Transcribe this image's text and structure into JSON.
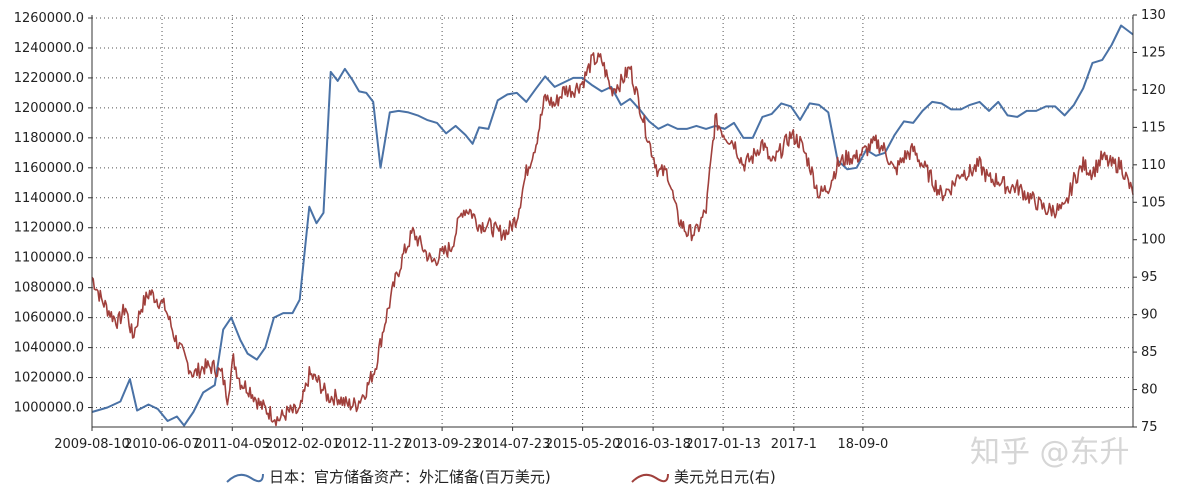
{
  "chart_data": {
    "type": "line",
    "x_ticks": [
      "2009-08-10",
      "2010-06-07",
      "2011-04-05",
      "2012-02-01",
      "2012-11-27",
      "2013-09-23",
      "2014-07-23",
      "2015-05-20",
      "2016-03-18",
      "2017-01-13",
      "2017-11-13",
      "2018-09-06"
    ],
    "x_tick_labels_shown": [
      "2009-08-10",
      "2010-06-07",
      "2011-04-05",
      "2012-02-01",
      "2012-11-27",
      "2013-09-23",
      "2014-07-23",
      "2015-05-20",
      "2016-03-18",
      "2017-01-13",
      "2017-1",
      "18-09-0"
    ],
    "y_left": {
      "ticks": [
        1000000,
        1020000,
        1040000,
        1060000,
        1080000,
        1100000,
        1120000,
        1140000,
        1160000,
        1180000,
        1200000,
        1220000,
        1240000,
        1260000
      ],
      "tick_labels": [
        "1000000.0",
        "1020000.0",
        "1040000.0",
        "1060000.0",
        "1080000.0",
        "1100000.0",
        "1120000.0",
        "1140000.0",
        "1160000.0",
        "1180000.0",
        "1200000.0",
        "1220000.0",
        "1240000.0",
        "1260000.0"
      ],
      "range": [
        987000,
        1262000
      ]
    },
    "y_right": {
      "ticks": [
        75,
        80,
        85,
        90,
        95,
        100,
        105,
        110,
        115,
        120,
        125,
        130
      ],
      "tick_labels": [
        "75",
        "80",
        "85",
        "90",
        "95",
        "100",
        "105",
        "110",
        "115",
        "120",
        "125",
        "130"
      ],
      "range": [
        75,
        130
      ]
    },
    "grid": true,
    "legend_position": "bottom-center",
    "series": [
      {
        "name": "日本：官方储备资产：外汇储备(百万美元)",
        "axis": "left",
        "color": "#4a72a6",
        "points": [
          [
            "2009-08-10",
            997000
          ],
          [
            "2009-10-15",
            1000000
          ],
          [
            "2009-12-10",
            1004000
          ],
          [
            "2010-01-20",
            1019000
          ],
          [
            "2010-02-20",
            998000
          ],
          [
            "2010-04-10",
            1002000
          ],
          [
            "2010-05-20",
            999000
          ],
          [
            "2010-07-01",
            991000
          ],
          [
            "2010-08-10",
            994000
          ],
          [
            "2010-09-10",
            988000
          ],
          [
            "2010-10-20",
            997000
          ],
          [
            "2010-12-01",
            1010000
          ],
          [
            "2011-01-20",
            1015000
          ],
          [
            "2011-02-25",
            1052000
          ],
          [
            "2011-04-01",
            1060000
          ],
          [
            "2011-05-10",
            1045000
          ],
          [
            "2011-06-10",
            1036000
          ],
          [
            "2011-07-20",
            1032000
          ],
          [
            "2011-08-25",
            1040000
          ],
          [
            "2011-10-01",
            1060000
          ],
          [
            "2011-11-10",
            1063000
          ],
          [
            "2011-12-20",
            1063000
          ],
          [
            "2012-01-20",
            1072000
          ],
          [
            "2012-03-01",
            1134000
          ],
          [
            "2012-04-01",
            1123000
          ],
          [
            "2012-05-01",
            1130000
          ],
          [
            "2012-06-01",
            1224000
          ],
          [
            "2012-07-01",
            1218000
          ],
          [
            "2012-08-01",
            1226000
          ],
          [
            "2012-09-01",
            1219000
          ],
          [
            "2012-10-01",
            1211000
          ],
          [
            "2012-11-01",
            1210000
          ],
          [
            "2012-12-01",
            1204000
          ],
          [
            "2013-01-01",
            1160000
          ],
          [
            "2013-02-10",
            1197000
          ],
          [
            "2013-03-20",
            1198000
          ],
          [
            "2013-05-01",
            1197000
          ],
          [
            "2013-06-10",
            1195000
          ],
          [
            "2013-07-20",
            1192000
          ],
          [
            "2013-09-01",
            1190000
          ],
          [
            "2013-10-10",
            1183000
          ],
          [
            "2013-11-20",
            1188000
          ],
          [
            "2014-01-01",
            1182000
          ],
          [
            "2014-02-01",
            1176000
          ],
          [
            "2014-03-01",
            1187000
          ],
          [
            "2014-04-10",
            1186000
          ],
          [
            "2014-05-20",
            1205000
          ],
          [
            "2014-07-01",
            1209000
          ],
          [
            "2014-08-10",
            1210000
          ],
          [
            "2014-09-20",
            1204000
          ],
          [
            "2014-11-01",
            1213000
          ],
          [
            "2014-12-10",
            1221000
          ],
          [
            "2015-01-20",
            1214000
          ],
          [
            "2015-03-01",
            1217000
          ],
          [
            "2015-04-10",
            1220000
          ],
          [
            "2015-05-20",
            1220000
          ],
          [
            "2015-07-01",
            1215000
          ],
          [
            "2015-08-10",
            1211000
          ],
          [
            "2015-09-20",
            1214000
          ],
          [
            "2015-11-01",
            1202000
          ],
          [
            "2015-12-10",
            1206000
          ],
          [
            "2016-01-20",
            1199000
          ],
          [
            "2016-03-01",
            1191000
          ],
          [
            "2016-04-10",
            1186000
          ],
          [
            "2016-05-20",
            1189000
          ],
          [
            "2016-07-01",
            1186000
          ],
          [
            "2016-08-10",
            1186000
          ],
          [
            "2016-09-20",
            1188000
          ],
          [
            "2016-11-01",
            1186000
          ],
          [
            "2016-12-10",
            1188000
          ],
          [
            "2017-01-20",
            1186000
          ],
          [
            "2017-03-01",
            1190000
          ],
          [
            "2017-04-10",
            1180000
          ],
          [
            "2017-05-20",
            1180000
          ],
          [
            "2017-07-01",
            1194000
          ],
          [
            "2017-08-10",
            1196000
          ],
          [
            "2017-09-20",
            1203000
          ],
          [
            "2017-11-01",
            1201000
          ],
          [
            "2017-12-10",
            1192000
          ],
          [
            "2018-01-20",
            1203000
          ],
          [
            "2018-03-01",
            1202000
          ],
          [
            "2018-04-10",
            1197000
          ],
          [
            "2018-05-20",
            1165000
          ],
          [
            "2018-07-01",
            1159000
          ],
          [
            "2018-08-10",
            1160000
          ],
          [
            "2018-09-20",
            1172000
          ],
          [
            "2018-11-01",
            1168000
          ],
          [
            "2018-12-10",
            1170000
          ],
          [
            "2019-01-20",
            1182000
          ],
          [
            "2019-03-01",
            1191000
          ],
          [
            "2019-04-10",
            1190000
          ],
          [
            "2019-05-20",
            1198000
          ],
          [
            "2019-07-01",
            1204000
          ],
          [
            "2019-08-10",
            1203000
          ],
          [
            "2019-09-20",
            1199000
          ],
          [
            "2019-11-01",
            1199000
          ],
          [
            "2019-12-10",
            1202000
          ],
          [
            "2020-01-20",
            1204000
          ],
          [
            "2020-03-01",
            1198000
          ],
          [
            "2020-04-10",
            1204000
          ],
          [
            "2020-05-20",
            1195000
          ],
          [
            "2020-07-01",
            1194000
          ],
          [
            "2020-08-10",
            1198000
          ],
          [
            "2020-09-20",
            1198000
          ],
          [
            "2020-11-01",
            1201000
          ],
          [
            "2020-12-10",
            1201000
          ],
          [
            "2021-01-20",
            1195000
          ],
          [
            "2021-03-01",
            1202000
          ],
          [
            "2021-04-10",
            1213000
          ],
          [
            "2021-05-20",
            1230000
          ],
          [
            "2021-07-01",
            1232000
          ],
          [
            "2021-08-10",
            1242000
          ],
          [
            "2021-09-20",
            1255000
          ],
          [
            "2021-11-10",
            1249000
          ]
        ]
      },
      {
        "name": "美元兑日元(右)",
        "axis": "right",
        "color": "#a0403c",
        "points": [
          [
            "2009-08-10",
            95
          ],
          [
            "2009-09-20",
            92
          ],
          [
            "2009-11-01",
            90
          ],
          [
            "2009-12-01",
            89
          ],
          [
            "2010-01-01",
            91
          ],
          [
            "2010-02-01",
            87
          ],
          [
            "2010-03-10",
            91
          ],
          [
            "2010-04-15",
            93
          ],
          [
            "2010-05-20",
            92
          ],
          [
            "2010-06-20",
            91
          ],
          [
            "2010-08-01",
            87
          ],
          [
            "2010-09-15",
            84
          ],
          [
            "2010-10-20",
            82
          ],
          [
            "2010-12-01",
            83
          ],
          [
            "2011-01-15",
            83
          ],
          [
            "2011-02-20",
            82
          ],
          [
            "2011-03-15",
            79
          ],
          [
            "2011-04-10",
            84
          ],
          [
            "2011-05-10",
            81
          ],
          [
            "2011-06-20",
            80
          ],
          [
            "2011-08-01",
            78
          ],
          [
            "2011-09-10",
            77
          ],
          [
            "2011-10-20",
            76
          ],
          [
            "2011-12-01",
            77
          ],
          [
            "2012-01-20",
            77
          ],
          [
            "2012-03-01",
            82
          ],
          [
            "2012-04-10",
            81
          ],
          [
            "2012-05-20",
            79
          ],
          [
            "2012-07-01",
            79
          ],
          [
            "2012-08-10",
            78
          ],
          [
            "2012-09-20",
            78
          ],
          [
            "2012-11-01",
            80
          ],
          [
            "2012-12-10",
            83
          ],
          [
            "2013-01-20",
            89
          ],
          [
            "2013-03-01",
            94
          ],
          [
            "2013-04-10",
            98
          ],
          [
            "2013-05-20",
            101
          ],
          [
            "2013-07-01",
            99
          ],
          [
            "2013-08-10",
            97
          ],
          [
            "2013-09-20",
            98
          ],
          [
            "2013-11-01",
            99
          ],
          [
            "2013-12-20",
            104
          ],
          [
            "2014-01-20",
            104
          ],
          [
            "2014-03-01",
            102
          ],
          [
            "2014-04-10",
            102
          ],
          [
            "2014-05-20",
            101
          ],
          [
            "2014-07-01",
            101
          ],
          [
            "2014-08-10",
            103
          ],
          [
            "2014-09-20",
            109
          ],
          [
            "2014-11-01",
            113
          ],
          [
            "2014-12-10",
            119
          ],
          [
            "2015-01-20",
            118
          ],
          [
            "2015-03-01",
            120
          ],
          [
            "2015-04-10",
            120
          ],
          [
            "2015-05-20",
            121
          ],
          [
            "2015-07-01",
            124
          ],
          [
            "2015-08-10",
            124
          ],
          [
            "2015-09-20",
            120
          ],
          [
            "2015-11-01",
            121
          ],
          [
            "2015-12-10",
            123
          ],
          [
            "2016-01-20",
            118
          ],
          [
            "2016-03-01",
            113
          ],
          [
            "2016-04-10",
            109
          ],
          [
            "2016-05-20",
            109
          ],
          [
            "2016-07-01",
            103
          ],
          [
            "2016-08-10",
            101
          ],
          [
            "2016-09-20",
            101
          ],
          [
            "2016-11-01",
            104
          ],
          [
            "2016-12-10",
            116
          ],
          [
            "2017-01-20",
            114
          ],
          [
            "2017-03-01",
            113
          ],
          [
            "2017-04-10",
            110
          ],
          [
            "2017-05-20",
            111
          ],
          [
            "2017-07-01",
            113
          ],
          [
            "2017-08-10",
            110
          ],
          [
            "2017-09-20",
            112
          ],
          [
            "2017-11-01",
            114
          ],
          [
            "2017-12-10",
            113
          ],
          [
            "2018-01-20",
            110
          ],
          [
            "2018-03-01",
            106
          ],
          [
            "2018-04-10",
            107
          ],
          [
            "2018-05-20",
            110
          ],
          [
            "2018-07-01",
            111
          ],
          [
            "2018-08-10",
            111
          ],
          [
            "2018-09-20",
            112
          ],
          [
            "2018-11-01",
            113
          ],
          [
            "2018-12-10",
            112
          ],
          [
            "2019-01-20",
            109
          ],
          [
            "2019-03-01",
            111
          ],
          [
            "2019-04-10",
            112
          ],
          [
            "2019-05-20",
            110
          ],
          [
            "2019-07-01",
            108
          ],
          [
            "2019-08-10",
            106
          ],
          [
            "2019-09-20",
            107
          ],
          [
            "2019-11-01",
            109
          ],
          [
            "2019-12-10",
            109
          ],
          [
            "2020-01-20",
            110
          ],
          [
            "2020-03-01",
            108
          ],
          [
            "2020-04-10",
            108
          ],
          [
            "2020-05-20",
            107
          ],
          [
            "2020-07-01",
            107
          ],
          [
            "2020-08-10",
            106
          ],
          [
            "2020-09-20",
            105
          ],
          [
            "2020-11-01",
            104
          ],
          [
            "2020-12-10",
            104
          ],
          [
            "2021-01-20",
            104
          ],
          [
            "2021-03-01",
            108
          ],
          [
            "2021-04-10",
            110
          ],
          [
            "2021-05-20",
            109
          ],
          [
            "2021-07-01",
            111
          ],
          [
            "2021-08-10",
            110
          ],
          [
            "2021-09-20",
            110
          ],
          [
            "2021-11-10",
            106
          ]
        ]
      }
    ]
  },
  "watermark": {
    "text": "知乎 @东升"
  }
}
